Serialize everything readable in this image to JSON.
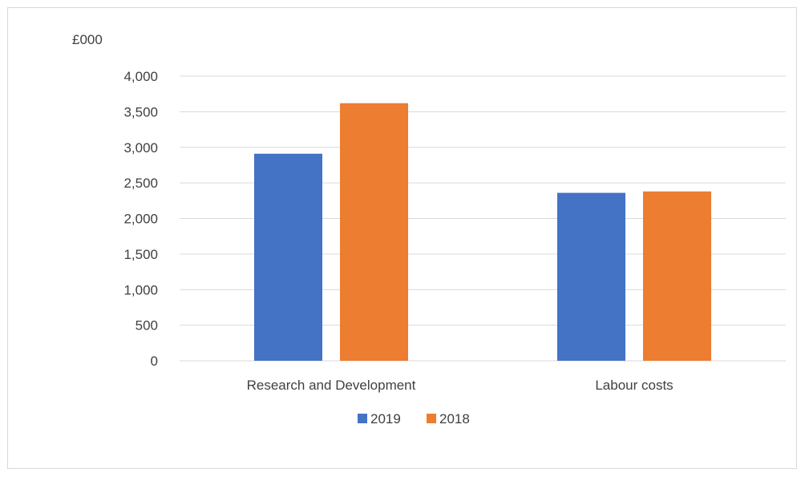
{
  "chart_data": {
    "type": "bar",
    "title": "",
    "ylabel": "£000",
    "xlabel": "",
    "categories": [
      "Research and Development",
      "Labour costs"
    ],
    "series": [
      {
        "name": "2019",
        "values": [
          2910,
          2360
        ],
        "color": "#4472C4"
      },
      {
        "name": "2018",
        "values": [
          3620,
          2380
        ],
        "color": "#ED7D31"
      }
    ],
    "ylim": [
      0,
      4000
    ],
    "yticks": [
      0,
      500,
      1000,
      1500,
      2000,
      2500,
      3000,
      3500,
      4000
    ],
    "ytick_labels": [
      "0",
      "500",
      "1,000",
      "1,500",
      "2,000",
      "2,500",
      "3,000",
      "3,500",
      "4,000"
    ],
    "grid": true,
    "legend_position": "bottom"
  }
}
